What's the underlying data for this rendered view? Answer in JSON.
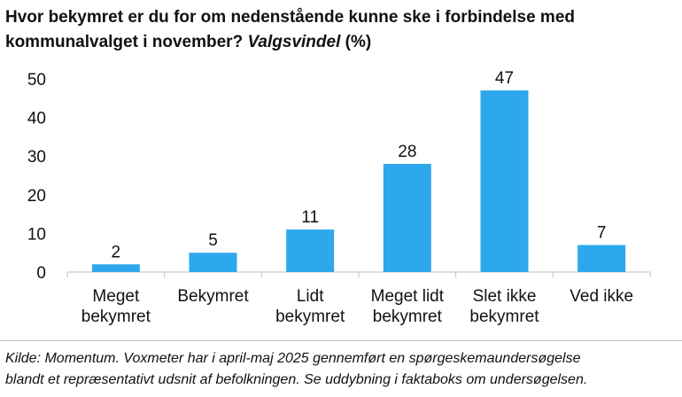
{
  "header": {
    "title_main": "Hvor bekymret er du for om nedenstående kunne ske i forbindelse med kommunalvalget i november?",
    "title_italic": "Valgsvindel",
    "title_unit": "(%)"
  },
  "chart_data": {
    "type": "bar",
    "categories": [
      [
        "Meget",
        "bekymret"
      ],
      [
        "Bekymret"
      ],
      [
        "Lidt",
        "bekymret"
      ],
      [
        "Meget lidt",
        "bekymret"
      ],
      [
        "Slet ikke",
        "bekymret"
      ],
      [
        "Ved ikke"
      ]
    ],
    "values": [
      2,
      5,
      11,
      28,
      47,
      7
    ],
    "ylim": [
      0,
      50
    ],
    "yticks": [
      0,
      10,
      20,
      30,
      40,
      50
    ],
    "bar_color": "#2EA8EC",
    "grid": false,
    "legend": "none"
  },
  "footer": {
    "source_line1": "Kilde: Momentum. Voxmeter har i april-maj 2025 gennemført en spørgeskemaundersøgelse",
    "source_line2": "blandt et repræsentativt udsnit af befolkningen. Se uddybning i faktaboks om undersøgelsen."
  }
}
